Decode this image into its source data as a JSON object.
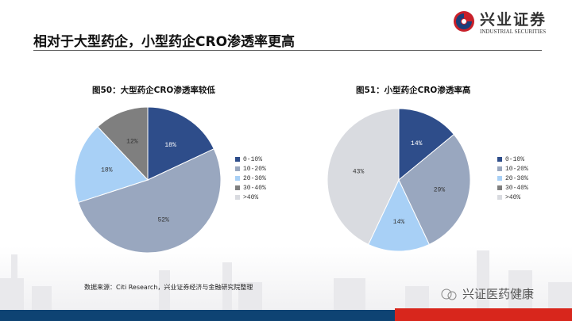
{
  "header": {
    "title": "相对于大型药企，小型药企CRO渗透率更高",
    "logo_cn": "兴业证券",
    "logo_en": "INDUSTRIAL SECURITIES"
  },
  "colors": [
    "#2e4d8a",
    "#99a7bf",
    "#a8d0f6",
    "#7f7f7f",
    "#d9dbe0"
  ],
  "chart_data": [
    {
      "type": "pie",
      "title": "图50：大型药企CRO渗透率较低",
      "categories": [
        "0-10%",
        "10-20%",
        "20-30%",
        "30-40%",
        ">40%"
      ],
      "values": [
        18,
        52,
        18,
        12,
        0
      ],
      "labels": [
        "18%",
        "52%",
        "18%",
        "12%",
        ""
      ],
      "legend": "right"
    },
    {
      "type": "pie",
      "title": "图51：小型药企CRO渗透率高",
      "categories": [
        "0-10%",
        "10-20%",
        "20-30%",
        "30-40%",
        ">40%"
      ],
      "values": [
        14,
        29,
        14,
        0,
        43
      ],
      "labels": [
        "14%",
        "29%",
        "14%",
        "",
        "43%"
      ],
      "legend": "right"
    }
  ],
  "footer": {
    "source": "数据来源：Citi Research，兴业证券经济与金融研究院整理",
    "wechat": "兴证医药健康"
  }
}
